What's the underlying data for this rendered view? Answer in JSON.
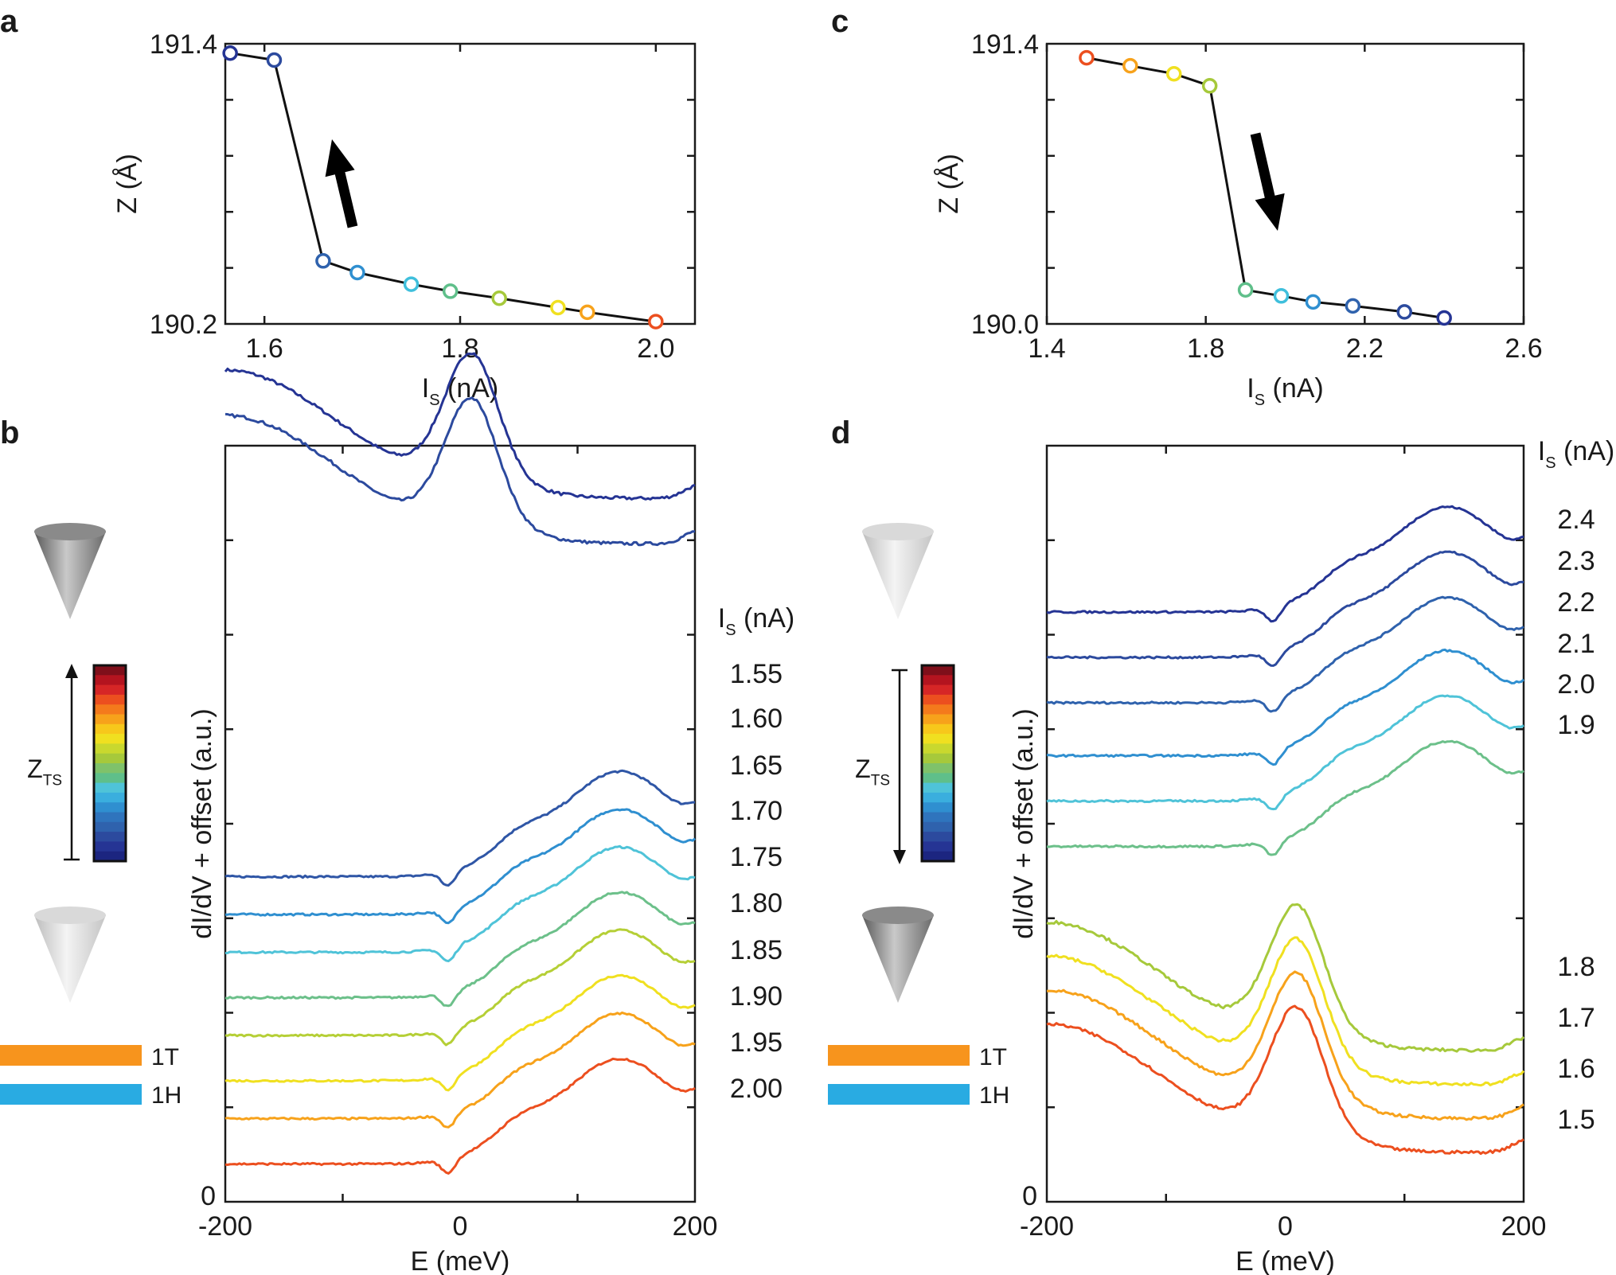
{
  "chart_data": [
    {
      "id": "a",
      "panel": "a",
      "type": "scatter",
      "xlabel_main": "I",
      "xlabel_sub": "S",
      "xlabel_unit": " (nA)",
      "ylabel": "Z (Å)",
      "xlim": [
        1.56,
        2.04
      ],
      "ylim": [
        190.2,
        191.4
      ],
      "xticks": [
        1.6,
        1.8,
        2.0
      ],
      "xtick_labels": [
        "1.6",
        "1.8",
        "2.0"
      ],
      "yticks": [
        190.2,
        191.4
      ],
      "ytick_labels": [
        "190.2",
        "191.4"
      ],
      "arrow": "up",
      "points": [
        {
          "x": 1.565,
          "y": 191.36,
          "color": "#253494"
        },
        {
          "x": 1.61,
          "y": 191.33,
          "color": "#2c4a9e"
        },
        {
          "x": 1.66,
          "y": 190.47,
          "color": "#2f62ad"
        },
        {
          "x": 1.695,
          "y": 190.42,
          "color": "#2f8fd0"
        },
        {
          "x": 1.75,
          "y": 190.37,
          "color": "#3fbfdc"
        },
        {
          "x": 1.79,
          "y": 190.34,
          "color": "#5fbf8a"
        },
        {
          "x": 1.84,
          "y": 190.31,
          "color": "#a6c93b"
        },
        {
          "x": 1.9,
          "y": 190.27,
          "color": "#f0e020"
        },
        {
          "x": 1.93,
          "y": 190.25,
          "color": "#f7a21b"
        },
        {
          "x": 2.0,
          "y": 190.21,
          "color": "#ec4f1f"
        }
      ]
    },
    {
      "id": "c",
      "panel": "c",
      "type": "scatter",
      "xlabel_main": "I",
      "xlabel_sub": "S",
      "xlabel_unit": " (nA)",
      "ylabel": "Z (Å)",
      "xlim": [
        1.4,
        2.6
      ],
      "ylim": [
        190.0,
        191.4
      ],
      "xticks": [
        1.4,
        1.8,
        2.2,
        2.6
      ],
      "xtick_labels": [
        "1.4",
        "1.8",
        "2.2",
        "2.6"
      ],
      "yticks": [
        190.0,
        191.4
      ],
      "ytick_labels": [
        "190.0",
        "191.4"
      ],
      "arrow": "down",
      "points": [
        {
          "x": 1.5,
          "y": 191.33,
          "color": "#ec4f1f"
        },
        {
          "x": 1.61,
          "y": 191.29,
          "color": "#f7a21b"
        },
        {
          "x": 1.72,
          "y": 191.25,
          "color": "#f0e020"
        },
        {
          "x": 1.81,
          "y": 191.19,
          "color": "#a6c93b"
        },
        {
          "x": 1.9,
          "y": 190.17,
          "color": "#5fbf8a"
        },
        {
          "x": 1.99,
          "y": 190.14,
          "color": "#3fbfdc"
        },
        {
          "x": 2.07,
          "y": 190.11,
          "color": "#2f8fd0"
        },
        {
          "x": 2.17,
          "y": 190.09,
          "color": "#2f62ad"
        },
        {
          "x": 2.3,
          "y": 190.06,
          "color": "#2c4a9e"
        },
        {
          "x": 2.4,
          "y": 190.03,
          "color": "#253494"
        }
      ]
    },
    {
      "id": "b",
      "panel": "b",
      "type": "line",
      "xlabel": "E (meV)",
      "ylabel": "dI/dV + offset (a.u.)",
      "xlim": [
        -200,
        200
      ],
      "xticks": [
        -200,
        0,
        200
      ],
      "xtick_labels": [
        "-200",
        "0",
        "200"
      ],
      "ytick_zero": "0",
      "legend_title_main": "I",
      "legend_title_sub": "S",
      "legend_title_unit": " (nA)",
      "colorbar_label": "Z",
      "colorbar_sub": "TS",
      "colorbar_arrow": "up",
      "legend_1T": "1T",
      "legend_1H": "1H",
      "color_1T": "#f7941d",
      "color_1H": "#29abe2",
      "series": [
        {
          "label": "1.55",
          "shape": "peak",
          "offset": 0.93,
          "color": "#253494"
        },
        {
          "label": "1.60",
          "shape": "peak",
          "offset": 0.87,
          "color": "#2c4a9e"
        },
        {
          "label": "1.65",
          "shape": "step",
          "offset": 0.43,
          "color": "#2f56a6"
        },
        {
          "label": "1.70",
          "shape": "step",
          "offset": 0.38,
          "color": "#2f8fd0"
        },
        {
          "label": "1.75",
          "shape": "step",
          "offset": 0.33,
          "color": "#4fc3d8"
        },
        {
          "label": "1.80",
          "shape": "step",
          "offset": 0.27,
          "color": "#6cc08a"
        },
        {
          "label": "1.85",
          "shape": "step",
          "offset": 0.22,
          "color": "#b5cf36"
        },
        {
          "label": "1.90",
          "shape": "step",
          "offset": 0.16,
          "color": "#f0e020"
        },
        {
          "label": "1.95",
          "shape": "step",
          "offset": 0.11,
          "color": "#f7a21b"
        },
        {
          "label": "2.00",
          "shape": "step",
          "offset": 0.05,
          "color": "#ec4f1f"
        }
      ]
    },
    {
      "id": "d",
      "panel": "d",
      "type": "line",
      "xlabel": "E (meV)",
      "ylabel": "dI/dV + offset (a.u.)",
      "xlim": [
        -200,
        200
      ],
      "xticks": [
        -200,
        0,
        200
      ],
      "xtick_labels": [
        "-200",
        "0",
        "200"
      ],
      "ytick_zero": "0",
      "legend_title_main": "I",
      "legend_title_sub": "S",
      "legend_title_unit": " (nA)",
      "colorbar_label": "Z",
      "colorbar_sub": "TS",
      "colorbar_arrow": "down",
      "legend_1T": "1T",
      "legend_1H": "1H",
      "color_1T": "#f7941d",
      "color_1H": "#29abe2",
      "series": [
        {
          "label": "2.4",
          "shape": "step",
          "offset": 0.78,
          "color": "#253494"
        },
        {
          "label": "2.3",
          "shape": "step",
          "offset": 0.72,
          "color": "#2c4a9e"
        },
        {
          "label": "2.2",
          "shape": "step",
          "offset": 0.66,
          "color": "#2f62ad"
        },
        {
          "label": "2.1",
          "shape": "step",
          "offset": 0.59,
          "color": "#2f8fd0"
        },
        {
          "label": "2.0",
          "shape": "step",
          "offset": 0.53,
          "color": "#4fc3d8"
        },
        {
          "label": "1.9",
          "shape": "step",
          "offset": 0.47,
          "color": "#6cc08a"
        },
        {
          "label": "1.8",
          "shape": "peak",
          "offset": 0.2,
          "color": "#a6c93b"
        },
        {
          "label": "1.7",
          "shape": "peak",
          "offset": 0.155,
          "color": "#f0e020"
        },
        {
          "label": "1.6",
          "shape": "peak",
          "offset": 0.11,
          "color": "#f7a21b"
        },
        {
          "label": "1.5",
          "shape": "peak",
          "offset": 0.065,
          "color": "#ec4f1f"
        }
      ]
    }
  ]
}
